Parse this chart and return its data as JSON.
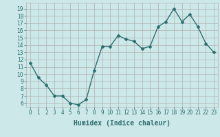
{
  "x": [
    0,
    1,
    2,
    3,
    4,
    5,
    6,
    7,
    8,
    9,
    10,
    11,
    12,
    13,
    14,
    15,
    16,
    17,
    18,
    19,
    20,
    21,
    22,
    23
  ],
  "y": [
    11.5,
    9.5,
    8.5,
    7.0,
    7.0,
    6.0,
    5.8,
    6.5,
    10.5,
    13.8,
    13.8,
    15.3,
    14.8,
    14.5,
    13.5,
    13.8,
    16.5,
    17.2,
    19.0,
    17.2,
    18.2,
    16.5,
    14.2,
    13.0
  ],
  "line_color": "#2d6e6e",
  "marker": "D",
  "marker_size": 2.0,
  "bg_color": "#cce8e8",
  "grid_color": "#b0b0b0",
  "xlabel": "Humidex (Indice chaleur)",
  "xlabel_fontsize": 7,
  "ylabel_ticks": [
    6,
    7,
    8,
    9,
    10,
    11,
    12,
    13,
    14,
    15,
    16,
    17,
    18,
    19
  ],
  "ylim": [
    5.5,
    19.8
  ],
  "xlim": [
    -0.5,
    23.5
  ],
  "tick_fontsize": 5.5,
  "line_width": 1.0
}
